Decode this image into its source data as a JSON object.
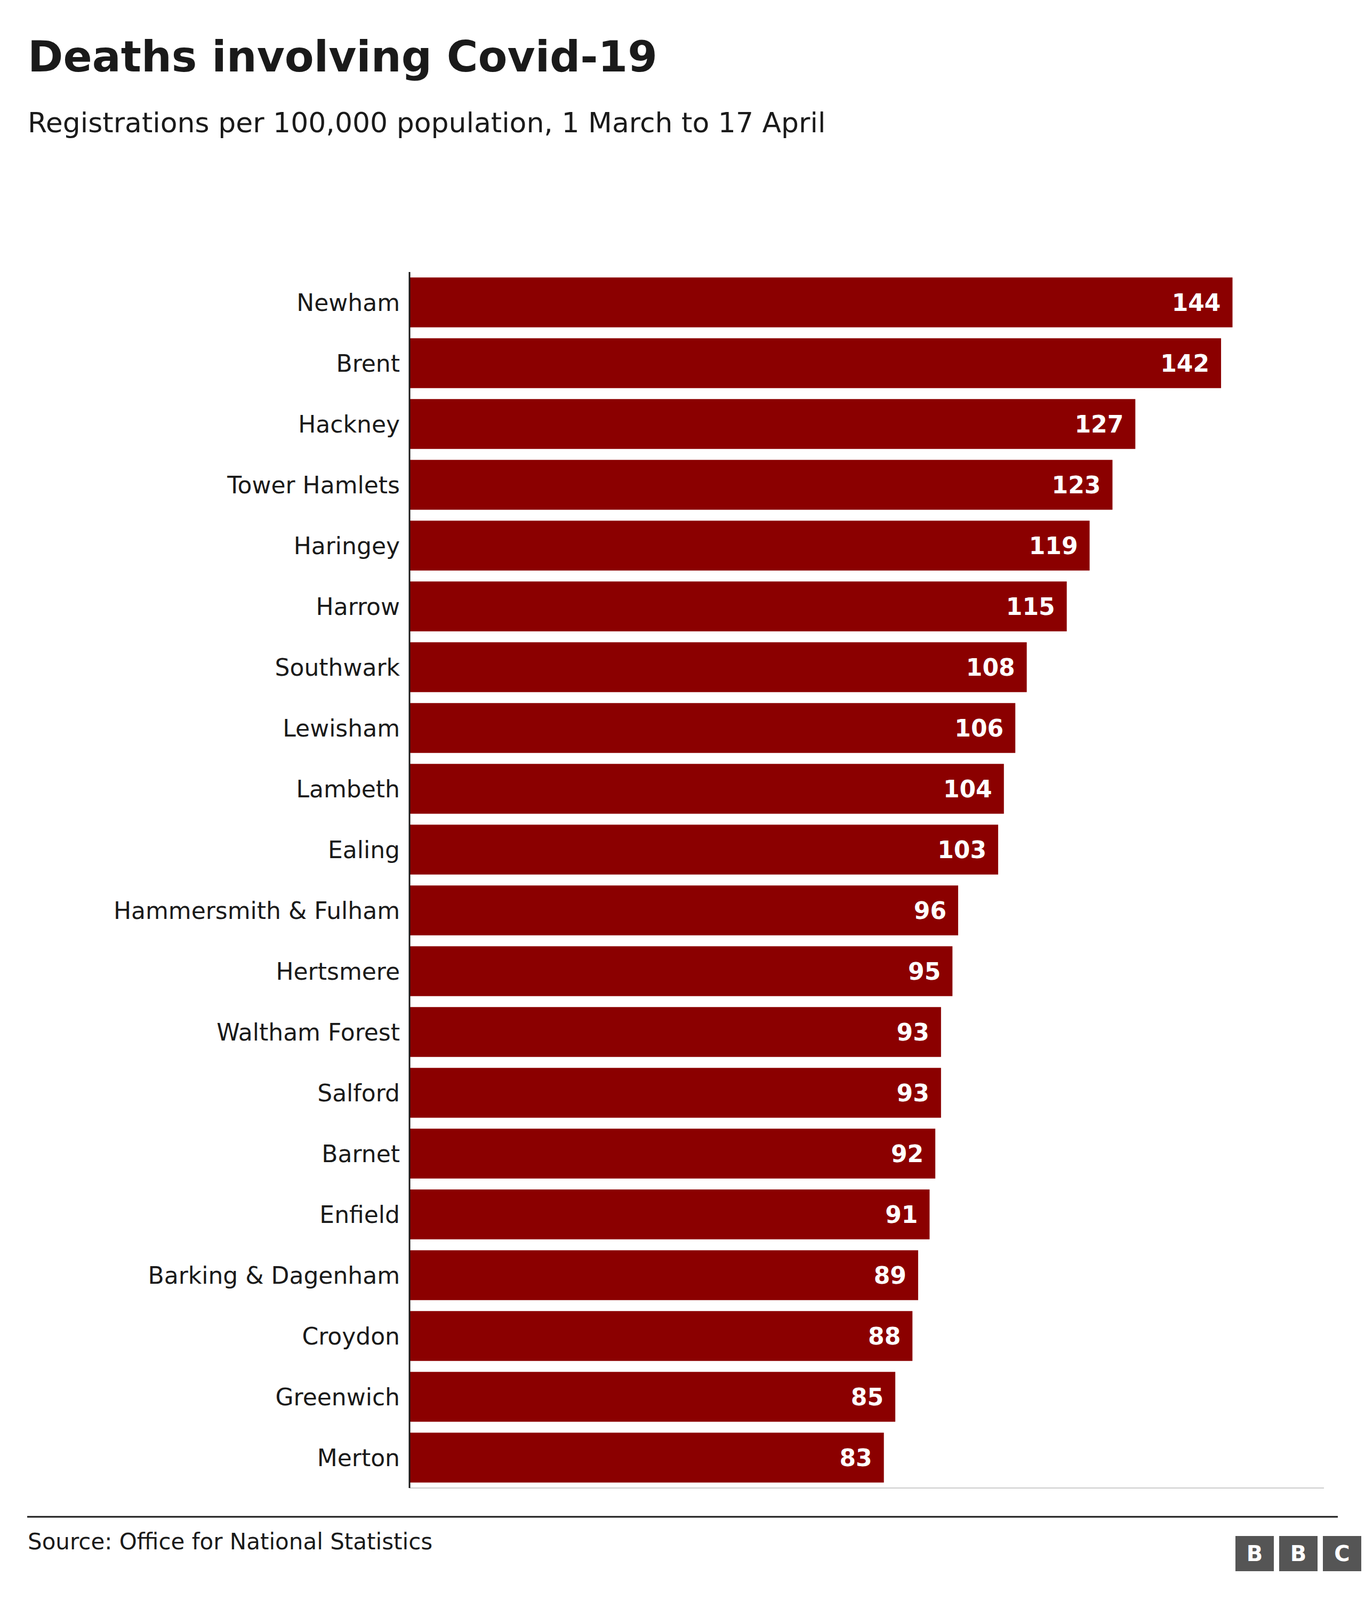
{
  "chart_data": {
    "type": "bar",
    "orientation": "horizontal",
    "title": "Deaths involving Covid-19",
    "subtitle": "Registrations per 100,000 population, 1 March to 17 April",
    "annotations": [
      "Source: Office for National Statistics",
      "B",
      "B",
      "C"
    ],
    "categories": [
      "Newham",
      "Brent",
      "Hackney",
      "Tower Hamlets",
      "Haringey",
      "Harrow",
      "Southwark",
      "Lewisham",
      "Lambeth",
      "Ealing",
      "Hammersmith & Fulham",
      "Hertsmere",
      "Waltham Forest",
      "Salford",
      "Barnet",
      "Enfield",
      "Barking & Dagenham",
      "Croydon",
      "Greenwich",
      "Merton"
    ],
    "values": [
      144,
      142,
      127,
      123,
      119,
      115,
      108,
      106,
      104,
      103,
      96,
      95,
      93,
      93,
      92,
      91,
      89,
      88,
      85,
      83
    ],
    "color": "#8B0000",
    "xlim": [
      0,
      160
    ],
    "data_labels": true,
    "tick_labels": "y",
    "grid": false
  }
}
